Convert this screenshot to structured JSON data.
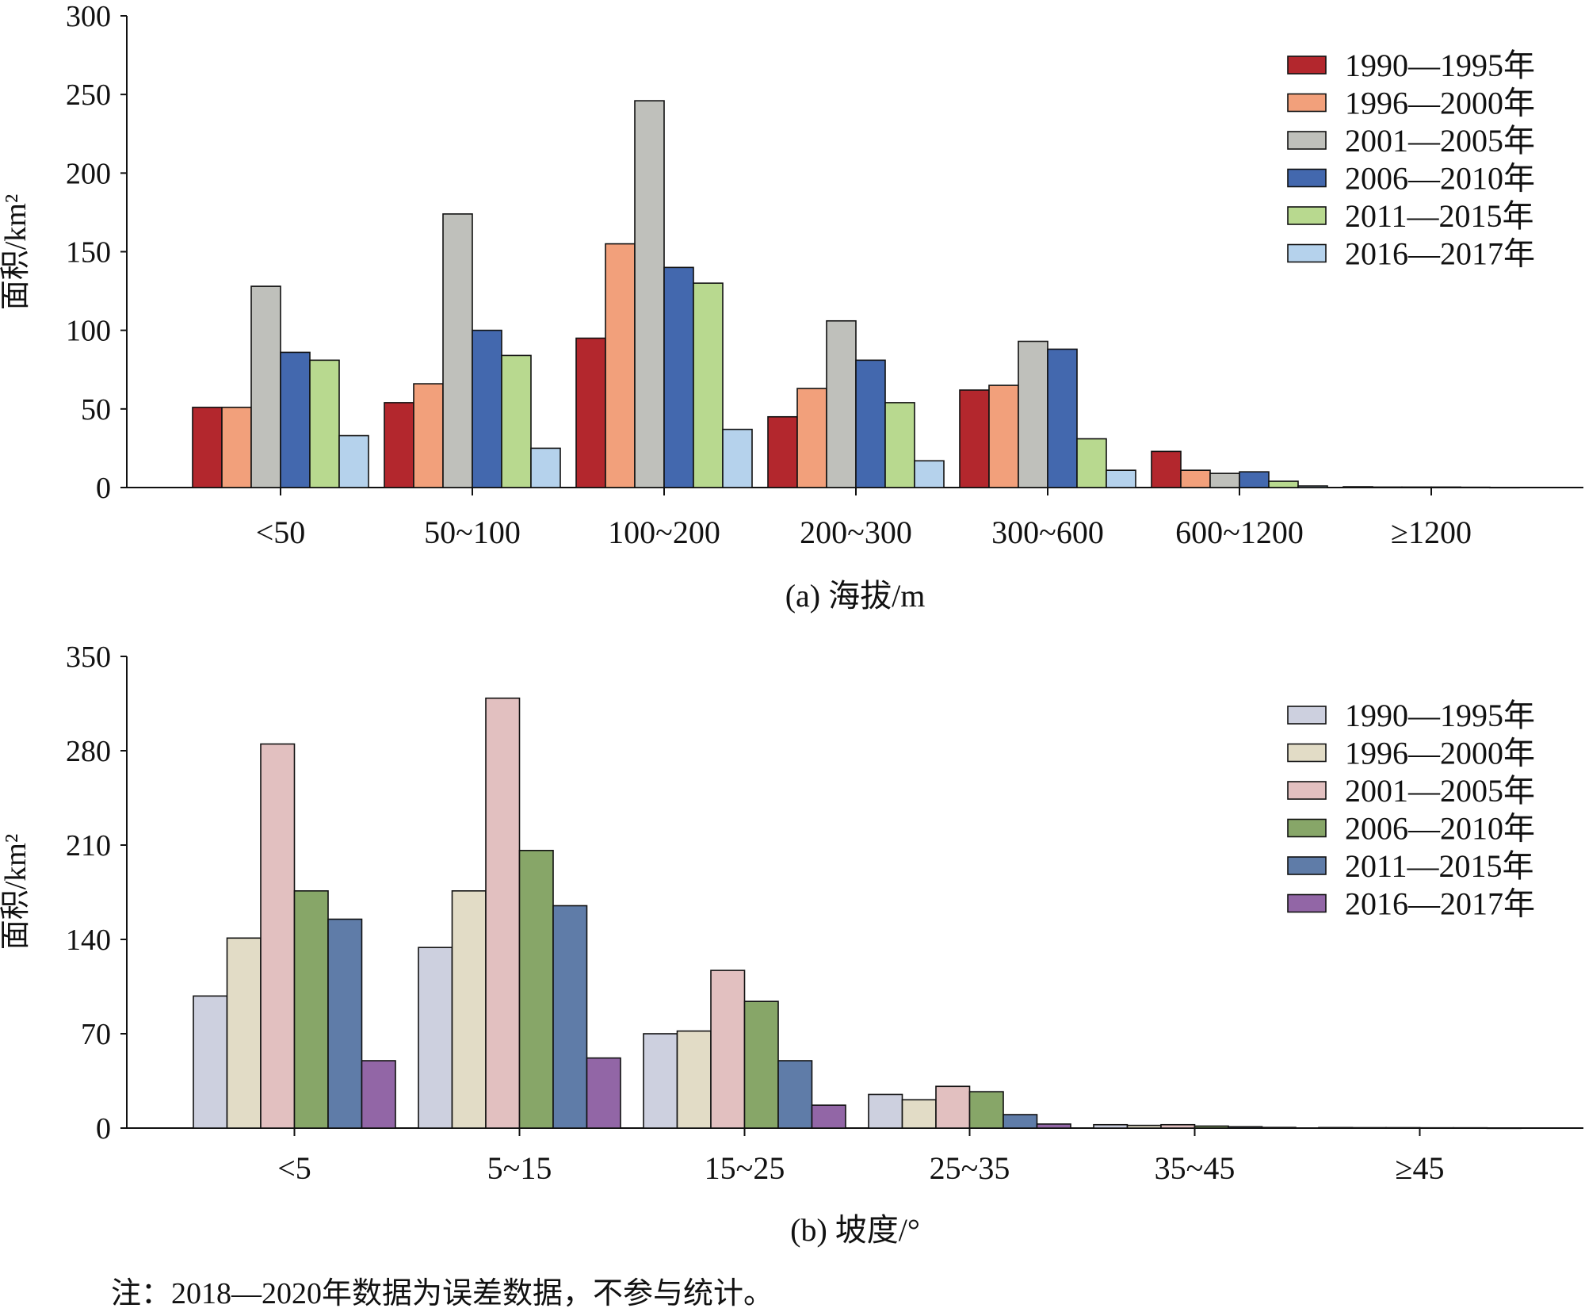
{
  "note": "注：2018—2020年数据为误差数据，不参与统计。",
  "chart_data": [
    {
      "type": "bar",
      "caption": "(a) 海拔/m",
      "ylabel": "面积/km²",
      "ylim": [
        0,
        300
      ],
      "yticks": [
        0,
        50,
        100,
        150,
        200,
        250,
        300
      ],
      "legend_position": "top-right",
      "categories": [
        "<50",
        "50~100",
        "100~200",
        "200~300",
        "300~600",
        "600~1200",
        "≥1200"
      ],
      "series": [
        {
          "name": "1990—1995年",
          "color": "#b3272d",
          "values": [
            51,
            54,
            95,
            45,
            62,
            23,
            0.5
          ]
        },
        {
          "name": "1996—2000年",
          "color": "#f2a07b",
          "values": [
            51,
            66,
            155,
            63,
            65,
            11,
            0.3
          ]
        },
        {
          "name": "2001—2005年",
          "color": "#bfc0bb",
          "values": [
            128,
            174,
            246,
            106,
            93,
            9,
            0.3
          ]
        },
        {
          "name": "2006—2010年",
          "color": "#4368ae",
          "values": [
            86,
            100,
            140,
            81,
            88,
            10,
            0.3
          ]
        },
        {
          "name": "2011—2015年",
          "color": "#b8d98f",
          "values": [
            81,
            84,
            130,
            54,
            31,
            4,
            0.2
          ]
        },
        {
          "name": "2016—2017年",
          "color": "#b5d2ec",
          "values": [
            33,
            25,
            37,
            17,
            11,
            1,
            0.1
          ]
        }
      ]
    },
    {
      "type": "bar",
      "caption": "(b) 坡度/°",
      "ylabel": "面积/km²",
      "ylim": [
        0,
        350
      ],
      "yticks": [
        0,
        70,
        140,
        210,
        280,
        350
      ],
      "legend_position": "top-right",
      "categories": [
        "<5",
        "5~15",
        "15~25",
        "25~35",
        "35~45",
        "≥45"
      ],
      "series": [
        {
          "name": "1990—1995年",
          "color": "#cdd0df",
          "values": [
            98,
            134,
            70,
            25,
            2.5,
            0.4
          ]
        },
        {
          "name": "1996—2000年",
          "color": "#e2dcc6",
          "values": [
            141,
            176,
            72,
            21,
            2,
            0.3
          ]
        },
        {
          "name": "2001—2005年",
          "color": "#e2c0c0",
          "values": [
            285,
            319,
            117,
            31,
            2.5,
            0.3
          ]
        },
        {
          "name": "2006—2010年",
          "color": "#87a668",
          "values": [
            176,
            206,
            94,
            27,
            1.5,
            0.2
          ]
        },
        {
          "name": "2011—2015年",
          "color": "#5f7ca8",
          "values": [
            155,
            165,
            50,
            10,
            1,
            0.2
          ]
        },
        {
          "name": "2016—2017年",
          "color": "#9266a6",
          "values": [
            50,
            52,
            17,
            3,
            0.5,
            0.1
          ]
        }
      ]
    }
  ]
}
